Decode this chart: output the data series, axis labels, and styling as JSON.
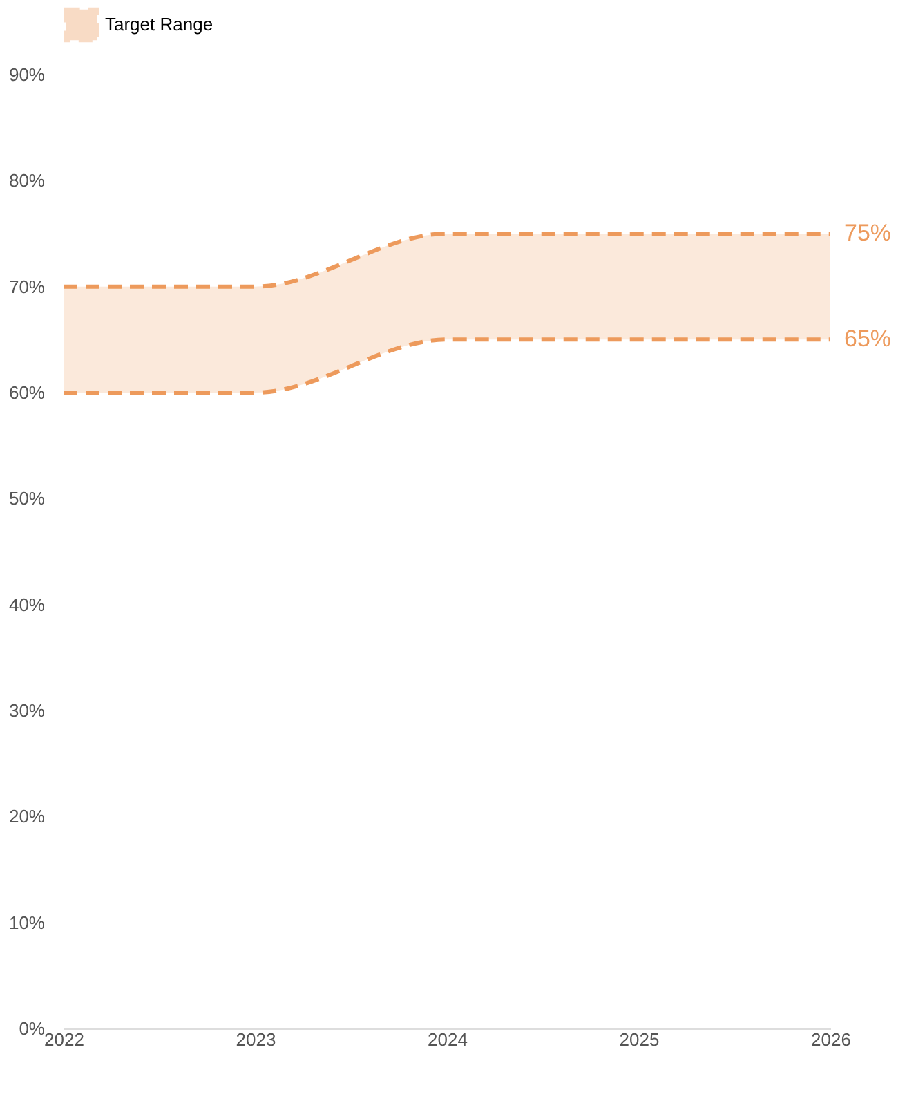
{
  "chart_data": {
    "type": "line",
    "x": [
      2022,
      2023,
      2024,
      2025,
      2026
    ],
    "xlim": [
      2022,
      2026
    ],
    "xticks": [
      2022,
      2023,
      2024,
      2025,
      2026
    ],
    "ylim": [
      0,
      90
    ],
    "yticks": [
      {
        "value": 0,
        "label": "0%"
      },
      {
        "value": 10,
        "label": "10%"
      },
      {
        "value": 20,
        "label": "20%"
      },
      {
        "value": 30,
        "label": "30%"
      },
      {
        "value": 40,
        "label": "40%"
      },
      {
        "value": 50,
        "label": "50%"
      },
      {
        "value": 60,
        "label": "60%"
      },
      {
        "value": 70,
        "label": "70%"
      },
      {
        "value": 80,
        "label": "80%"
      },
      {
        "value": 90,
        "label": "90%"
      }
    ],
    "series": [
      {
        "name": "Target Range",
        "color": "#ed9a5c",
        "values": [
          70,
          70,
          75,
          75,
          75
        ],
        "lower": [
          60,
          60,
          65,
          65,
          65
        ],
        "upper": [
          70,
          70,
          75,
          75,
          75
        ]
      },
      {
        "color": "#ed9a5c",
        "values": [
          60,
          60,
          65,
          65,
          65
        ]
      }
    ],
    "line_style": "dashed",
    "grid": false,
    "legend": "top",
    "annotations": [
      {
        "text": "75%",
        "x": 2026,
        "y": 75
      },
      {
        "text": "65%",
        "x": 2026,
        "y": 65
      }
    ]
  }
}
